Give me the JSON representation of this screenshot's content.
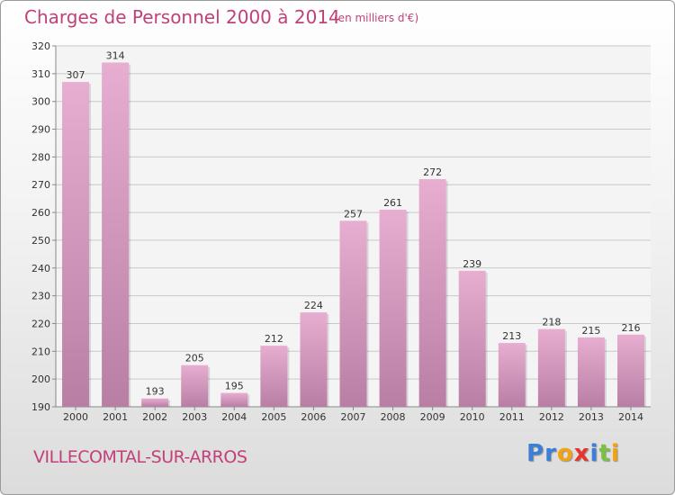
{
  "header": {
    "title": "Charges de Personnel 2000 à 2014",
    "subtitle": "(en milliers d'€)"
  },
  "footer": {
    "commune": "VILLECOMTAL-SUR-ARROS",
    "logo_letters": [
      {
        "char": "P",
        "color": "#3d7fd6"
      },
      {
        "char": "r",
        "color": "#3d7fd6"
      },
      {
        "char": "o",
        "color": "#f2a30f"
      },
      {
        "char": "x",
        "color": "#e8342c"
      },
      {
        "char": "i",
        "color": "#3d7fd6"
      },
      {
        "char": "t",
        "color": "#7ac143"
      },
      {
        "char": "i",
        "color": "#f2a30f"
      }
    ]
  },
  "colors": {
    "bar_light": "#e8aed1",
    "bar_dark": "#b87ea4",
    "accent": "#c2407a"
  },
  "chart_data": {
    "type": "bar",
    "title": "Charges de Personnel 2000 à 2014",
    "subtitle": "(en milliers d'€)",
    "categories": [
      "2000",
      "2001",
      "2002",
      "2003",
      "2004",
      "2005",
      "2006",
      "2007",
      "2008",
      "2009",
      "2010",
      "2011",
      "2012",
      "2013",
      "2014"
    ],
    "values": [
      307,
      314,
      193,
      205,
      195,
      212,
      224,
      257,
      261,
      272,
      239,
      213,
      218,
      215,
      216
    ],
    "ylim": [
      190,
      320
    ],
    "yticks": [
      190,
      200,
      210,
      220,
      230,
      240,
      250,
      260,
      270,
      280,
      290,
      300,
      310,
      320
    ],
    "grid": true,
    "legend": "none"
  }
}
